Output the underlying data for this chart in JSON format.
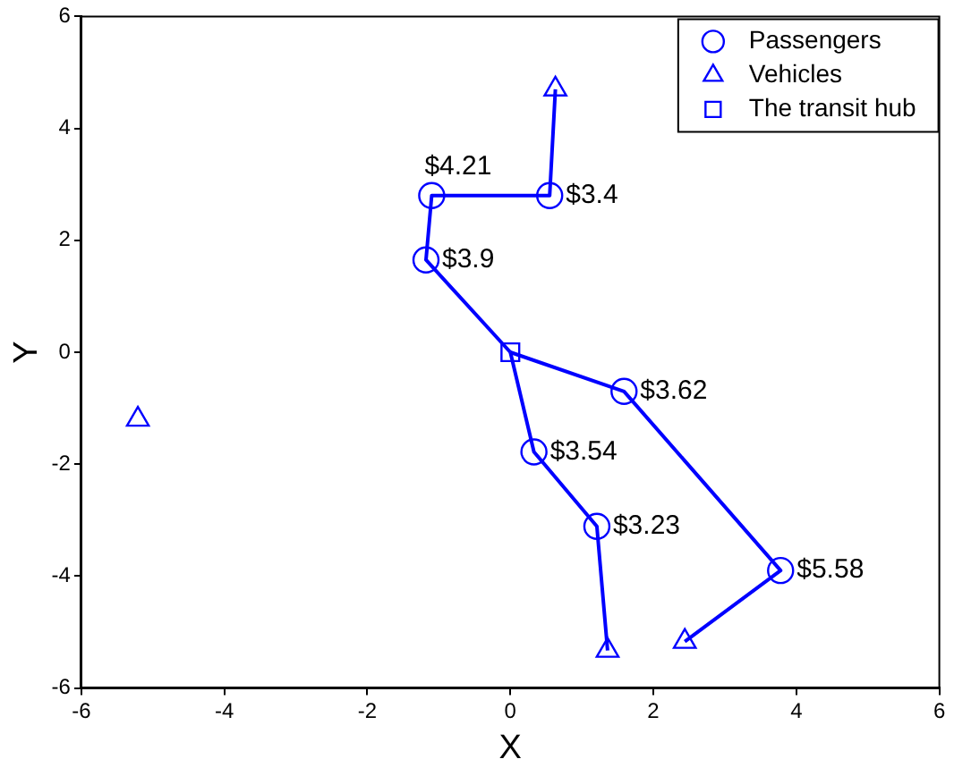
{
  "chart_data": {
    "type": "scatter",
    "xlabel": "X",
    "ylabel": "Y",
    "xlim": [
      -6,
      6
    ],
    "ylim": [
      -6,
      6
    ],
    "xticks": [
      -6,
      -4,
      -2,
      0,
      2,
      4,
      6
    ],
    "yticks": [
      -6,
      -4,
      -2,
      0,
      2,
      4,
      6
    ],
    "grid": false,
    "legend": "top right",
    "series": [
      {
        "type": "line",
        "color": "#0000ff",
        "marker": "none",
        "x": [
          0,
          -1.18,
          -1.1,
          0.55,
          0.63
        ],
        "values": [
          0,
          1.65,
          2.8,
          2.8,
          4.7
        ]
      },
      {
        "type": "line",
        "color": "#0000ff",
        "marker": "none",
        "x": [
          0,
          1.59,
          3.78,
          2.44
        ],
        "values": [
          0,
          -0.7,
          -3.9,
          -5.17
        ]
      },
      {
        "type": "line",
        "color": "#0000ff",
        "marker": "none",
        "x": [
          0,
          0.33,
          1.21,
          1.36
        ],
        "values": [
          0,
          -1.78,
          -3.11,
          -5.33
        ]
      },
      {
        "name": "Passengers",
        "color": "#0000ff",
        "marker": "circle",
        "x": [
          -1.1,
          0.55,
          -1.18,
          1.59,
          0.33,
          1.21,
          3.78
        ],
        "values": [
          2.8,
          2.8,
          1.65,
          -0.7,
          -1.78,
          -3.11,
          -3.9
        ]
      },
      {
        "name": "Vehicles",
        "color": "#0000ff",
        "marker": "triangle",
        "x": [
          0.63,
          -5.21,
          1.36,
          2.44
        ],
        "values": [
          4.7,
          -1.2,
          -5.33,
          -5.17
        ]
      },
      {
        "name": "The transit hub",
        "color": "#0000ff",
        "marker": "square",
        "x": [
          0
        ],
        "values": [
          0
        ]
      }
    ],
    "annotations": [
      {
        "text": "$4.21",
        "x": -1.1,
        "y": 2.8
      },
      {
        "text": "$3.4",
        "x": 0.55,
        "y": 2.8
      },
      {
        "text": "$3.9",
        "x": -1.18,
        "y": 1.65
      },
      {
        "text": "$3.62",
        "x": 1.59,
        "y": -0.7
      },
      {
        "text": "$3.54",
        "x": 0.33,
        "y": -1.78
      },
      {
        "text": "$3.23",
        "x": 1.21,
        "y": -3.11
      },
      {
        "text": "$5.58",
        "x": 3.78,
        "y": -3.9
      }
    ]
  }
}
